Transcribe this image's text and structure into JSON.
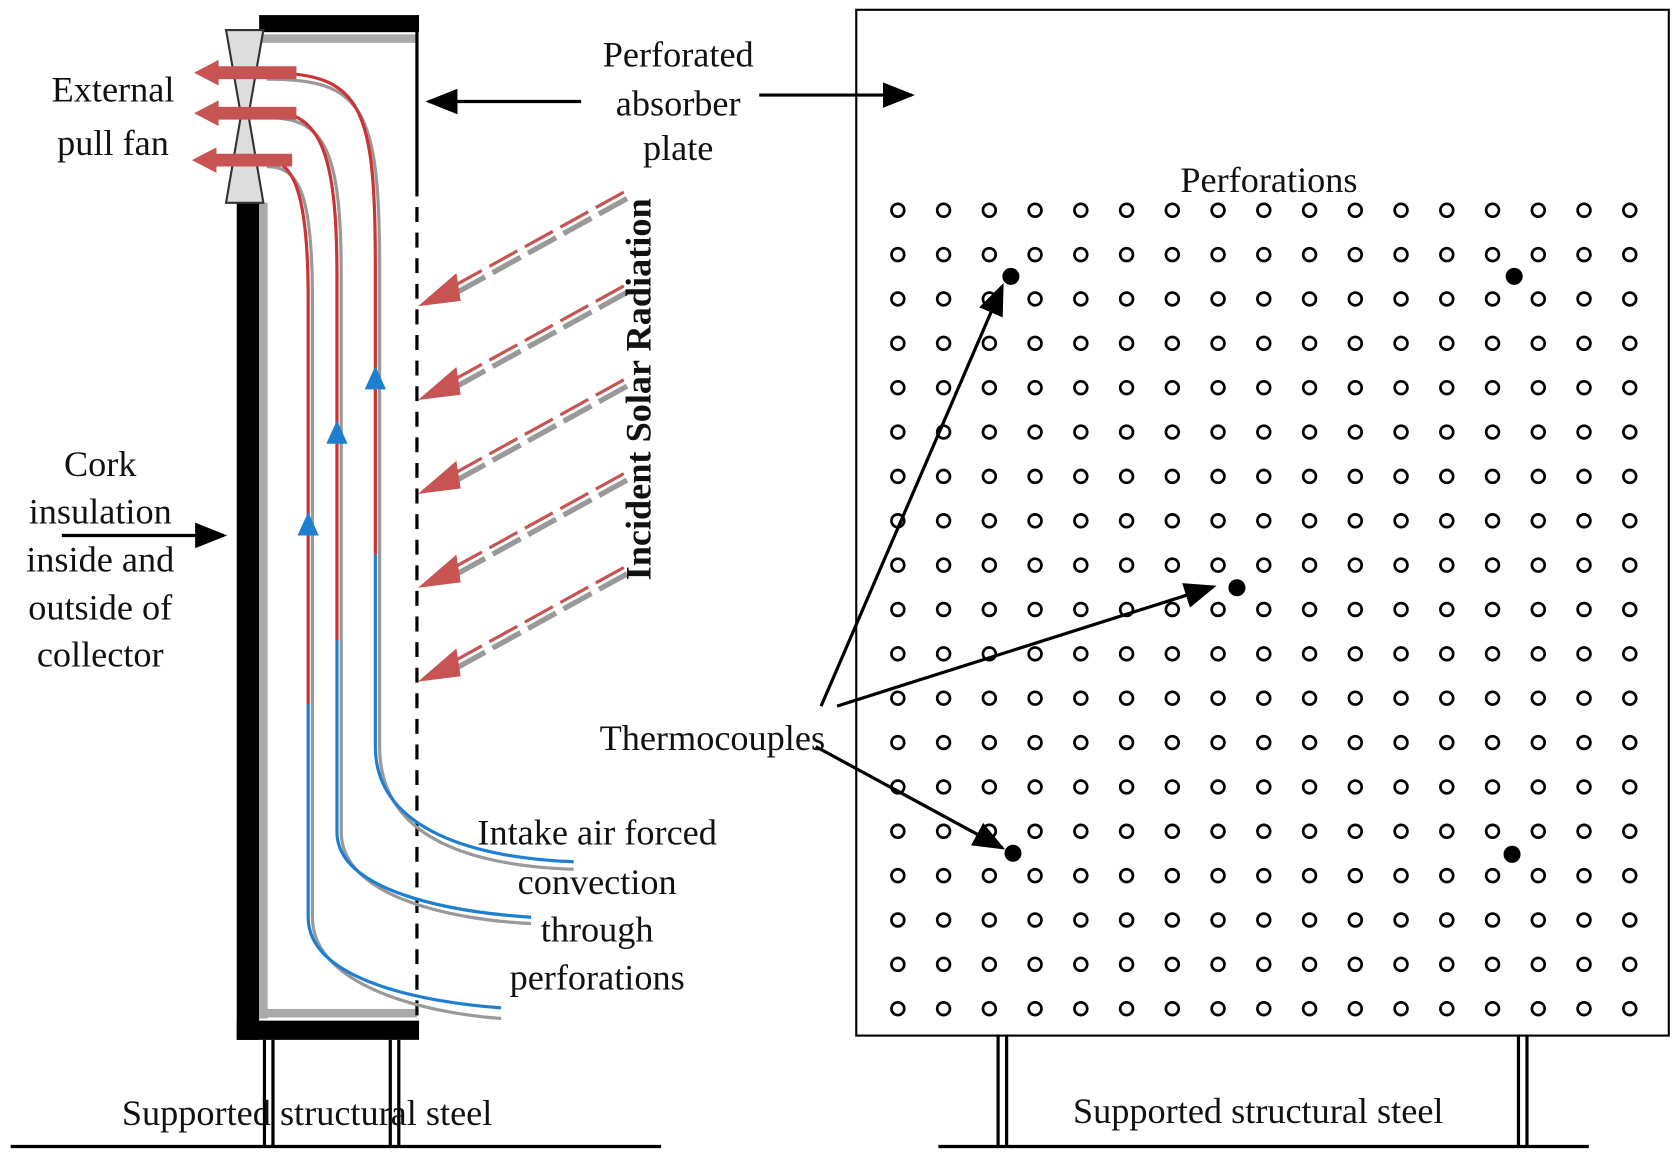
{
  "labels": {
    "fan": [
      "External",
      "pull fan"
    ],
    "absorber": [
      "Perforated",
      "absorber",
      "plate"
    ],
    "perforations": "Perforations",
    "radiation": "Incident Solar Radiation",
    "insulation": [
      "Cork",
      "insulation",
      "inside and",
      "outside of",
      "collector"
    ],
    "thermocouples": "Thermocouples",
    "intake": [
      "Intake air forced",
      "convection",
      "through",
      "perforations"
    ],
    "steel_left": "Supported structural steel",
    "steel_right": "Supported structural steel"
  }
}
